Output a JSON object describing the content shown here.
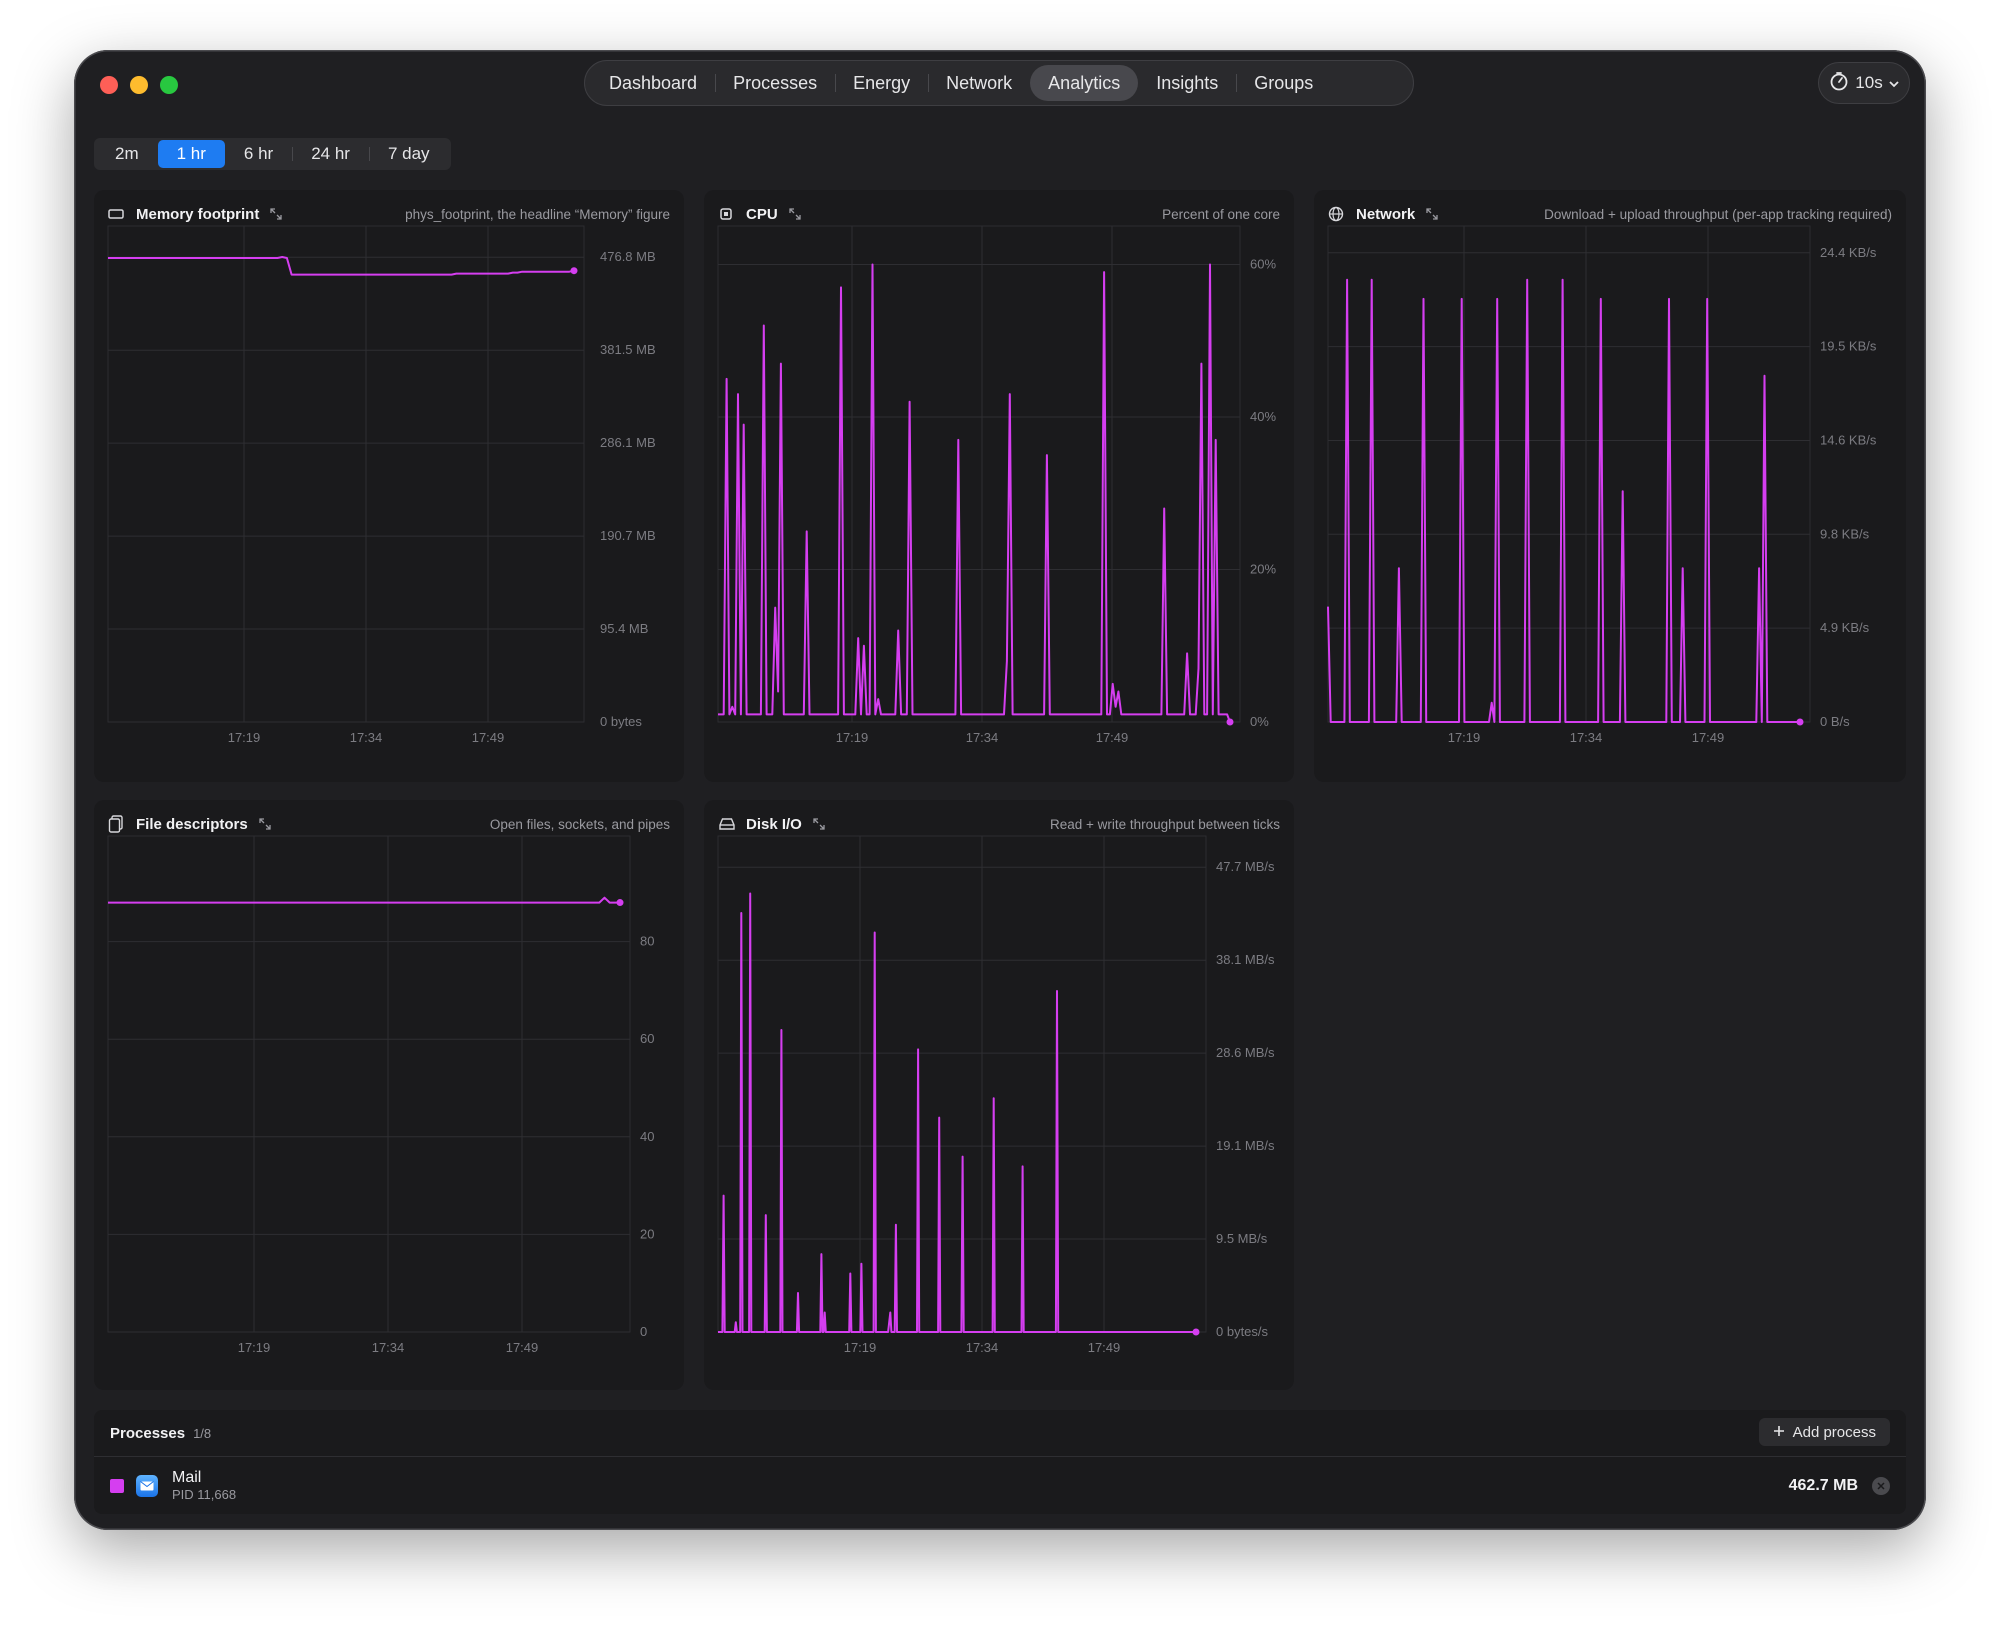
{
  "nav": {
    "tabs": [
      {
        "label": "Dashboard"
      },
      {
        "label": "Processes"
      },
      {
        "label": "Energy"
      },
      {
        "label": "Network"
      },
      {
        "label": "Analytics",
        "active": true
      },
      {
        "label": "Insights"
      },
      {
        "label": "Groups"
      }
    ],
    "interval": "10s"
  },
  "ranges": [
    {
      "label": "2m"
    },
    {
      "label": "1 hr",
      "active": true
    },
    {
      "label": "6 hr"
    },
    {
      "label": "24 hr"
    },
    {
      "label": "7 day"
    }
  ],
  "colors": {
    "series": "#d53ef0",
    "accent": "#1e7cf2"
  },
  "chart_data": [
    {
      "id": "memory",
      "type": "line",
      "title": "Memory footprint",
      "subtitle": "phys_footprint, the headline “Memory” figure",
      "yticks": [
        "476.8 MB",
        "381.5 MB",
        "286.1 MB",
        "190.7 MB",
        "95.4 MB",
        "0 bytes"
      ],
      "xticks": [
        "17:19",
        "17:34",
        "17:49"
      ],
      "grid": true,
      "series": [
        {
          "values": [
            476,
            476,
            476,
            476,
            476,
            476,
            476,
            476,
            476,
            476,
            476,
            476,
            476,
            476,
            476,
            476,
            476,
            476,
            476,
            476,
            476,
            476,
            476,
            476,
            476,
            476,
            476,
            476,
            476,
            476,
            476,
            476,
            476,
            476,
            476,
            476,
            476,
            477,
            476,
            459,
            459,
            459,
            459,
            459,
            459,
            459,
            459,
            459,
            459,
            459,
            459,
            459,
            459,
            459,
            459,
            459,
            459,
            459,
            459,
            459,
            459,
            459,
            459,
            459,
            459,
            459,
            459,
            459,
            459,
            459,
            459,
            459,
            459,
            459,
            460,
            460,
            460,
            460,
            460,
            460,
            460,
            460,
            460,
            460,
            460,
            460,
            461,
            461,
            462,
            462,
            462,
            462,
            462,
            462,
            462,
            462,
            462,
            462,
            462,
            463
          ]
        }
      ]
    },
    {
      "id": "cpu",
      "type": "line",
      "title": "CPU",
      "subtitle": "Percent of one core",
      "yticks": [
        "60%",
        "40%",
        "20%",
        "0%"
      ],
      "xticks": [
        "17:19",
        "17:34",
        "17:49"
      ],
      "grid": true,
      "series": [
        {
          "values": [
            1,
            1,
            1,
            45,
            1,
            2,
            1,
            43,
            1,
            39,
            1,
            1,
            1,
            1,
            1,
            1,
            52,
            1,
            1,
            1,
            15,
            4,
            47,
            1,
            1,
            1,
            1,
            1,
            1,
            1,
            1,
            25,
            1,
            1,
            1,
            1,
            1,
            1,
            1,
            1,
            1,
            1,
            1,
            57,
            1,
            1,
            1,
            1,
            1,
            11,
            1,
            10,
            1,
            1,
            60,
            1,
            3,
            1,
            1,
            1,
            1,
            1,
            1,
            12,
            1,
            1,
            1,
            42,
            1,
            1,
            1,
            1,
            1,
            1,
            1,
            1,
            1,
            1,
            1,
            1,
            1,
            1,
            1,
            1,
            37,
            1,
            1,
            1,
            1,
            1,
            1,
            1,
            1,
            1,
            1,
            1,
            1,
            1,
            1,
            1,
            1,
            8,
            43,
            1,
            1,
            1,
            1,
            1,
            1,
            1,
            1,
            1,
            1,
            1,
            1,
            35,
            1,
            1,
            1,
            1,
            1,
            1,
            1,
            1,
            1,
            1,
            1,
            1,
            1,
            1,
            1,
            1,
            1,
            1,
            1,
            59,
            1,
            1,
            5,
            2,
            4,
            1,
            1,
            1,
            1,
            1,
            1,
            1,
            1,
            1,
            1,
            1,
            1,
            1,
            1,
            1,
            28,
            1,
            1,
            1,
            1,
            1,
            1,
            1,
            9,
            1,
            1,
            1,
            7,
            47,
            1,
            1,
            60,
            1,
            37,
            1,
            1,
            1,
            1,
            0
          ]
        }
      ]
    },
    {
      "id": "network",
      "type": "line",
      "title": "Network",
      "subtitle": "Download + upload throughput (per-app tracking required)",
      "yticks": [
        "24.4 KB/s",
        "19.5 KB/s",
        "14.6 KB/s",
        "9.8 KB/s",
        "4.9 KB/s",
        "0 B/s"
      ],
      "xticks": [
        "17:19",
        "17:34",
        "17:49"
      ],
      "grid": true,
      "series": [
        {
          "values": [
            6,
            0,
            0,
            0,
            0,
            0,
            0,
            23,
            0,
            0,
            0,
            0,
            0,
            0,
            0,
            0,
            23,
            0,
            0,
            0,
            0,
            0,
            0,
            0,
            0,
            0,
            8,
            0,
            0,
            0,
            0,
            0,
            0,
            0,
            0,
            22,
            0,
            0,
            0,
            0,
            0,
            0,
            0,
            0,
            0,
            0,
            0,
            0,
            0,
            22,
            0,
            0,
            0,
            0,
            0,
            0,
            0,
            0,
            0,
            0,
            1,
            0,
            22,
            0,
            0,
            0,
            0,
            0,
            0,
            0,
            0,
            0,
            0,
            23,
            0,
            0,
            0,
            0,
            0,
            0,
            0,
            0,
            0,
            0,
            0,
            0,
            23,
            0,
            0,
            0,
            0,
            0,
            0,
            0,
            0,
            0,
            0,
            0,
            0,
            0,
            22,
            0,
            0,
            0,
            0,
            0,
            0,
            0,
            12,
            0,
            0,
            0,
            0,
            0,
            0,
            0,
            0,
            0,
            0,
            0,
            0,
            0,
            0,
            0,
            0,
            22,
            0,
            0,
            0,
            0,
            8,
            0,
            0,
            0,
            0,
            0,
            0,
            0,
            0,
            22,
            0,
            0,
            0,
            0,
            0,
            0,
            0,
            0,
            0,
            0,
            0,
            0,
            0,
            0,
            0,
            0,
            0,
            0,
            8,
            0,
            18,
            0,
            0,
            0,
            0,
            0,
            0,
            0,
            0,
            0,
            0,
            0,
            0,
            0
          ]
        }
      ]
    },
    {
      "id": "fd",
      "type": "line",
      "title": "File descriptors",
      "subtitle": "Open files, sockets, and pipes",
      "yticks": [
        "80",
        "60",
        "40",
        "20",
        "0"
      ],
      "xticks": [
        "17:19",
        "17:34",
        "17:49"
      ],
      "grid": true,
      "series": [
        {
          "values": [
            88,
            88,
            88,
            88,
            88,
            88,
            88,
            88,
            88,
            88,
            88,
            88,
            88,
            88,
            88,
            88,
            88,
            88,
            88,
            88,
            88,
            88,
            88,
            88,
            88,
            88,
            88,
            88,
            88,
            88,
            88,
            88,
            88,
            88,
            88,
            88,
            88,
            88,
            88,
            88,
            88,
            88,
            88,
            88,
            88,
            88,
            88,
            88,
            88,
            88,
            88,
            88,
            88,
            88,
            88,
            88,
            88,
            88,
            88,
            88,
            88,
            88,
            88,
            88,
            88,
            88,
            88,
            88,
            88,
            88,
            88,
            88,
            88,
            88,
            88,
            88,
            88,
            88,
            88,
            88,
            88,
            88,
            88,
            88,
            88,
            88,
            88,
            88,
            88,
            88,
            88,
            88,
            88,
            88,
            88,
            88,
            89,
            88,
            88,
            88
          ]
        }
      ]
    },
    {
      "id": "disk",
      "type": "line",
      "title": "Disk I/O",
      "subtitle": "Read + write throughput between ticks",
      "yticks": [
        "47.7 MB/s",
        "38.1 MB/s",
        "28.6 MB/s",
        "19.1 MB/s",
        "9.5 MB/s",
        "0 bytes/s"
      ],
      "xticks": [
        "17:19",
        "17:34",
        "17:49"
      ],
      "grid": true,
      "series": [
        {
          "values": [
            0,
            0,
            0,
            0,
            0,
            14,
            0,
            0,
            0,
            0,
            0,
            0,
            0,
            0,
            0,
            0,
            1,
            0,
            0,
            0,
            0,
            43,
            0,
            0,
            0,
            0,
            0,
            0,
            0,
            45,
            0,
            0,
            0,
            0,
            0,
            0,
            0,
            0,
            0,
            0,
            0,
            0,
            0,
            12,
            0,
            0,
            0,
            0,
            0,
            0,
            0,
            0,
            0,
            0,
            0,
            0,
            0,
            31,
            0,
            0,
            0,
            0,
            0,
            0,
            0,
            0,
            0,
            0,
            0,
            0,
            0,
            0,
            4,
            0,
            0,
            0,
            0,
            0,
            0,
            0,
            0,
            0,
            0,
            0,
            0,
            0,
            0,
            0,
            0,
            0,
            0,
            0,
            0,
            8,
            0,
            0,
            2,
            0,
            0,
            0,
            0,
            0,
            0,
            0,
            0,
            0,
            0,
            0,
            0,
            0,
            0,
            0,
            0,
            0,
            0,
            0,
            0,
            0,
            0,
            6,
            0,
            0,
            0,
            0,
            0,
            0,
            0,
            0,
            0,
            7,
            0,
            0,
            0,
            0,
            0,
            0,
            0,
            0,
            0,
            0,
            0,
            41,
            0,
            0,
            0,
            0,
            0,
            0,
            0,
            0,
            0,
            0,
            0,
            0,
            1,
            2,
            0,
            0,
            0,
            0,
            11,
            0,
            0,
            0,
            0,
            0,
            0,
            0,
            0,
            0,
            0,
            0,
            0,
            0,
            0,
            0,
            0,
            0,
            0,
            0,
            29,
            0,
            0,
            0,
            0,
            0,
            0,
            0,
            0,
            0,
            0,
            0,
            0,
            0,
            0,
            0,
            0,
            0,
            0,
            22,
            0,
            0,
            0,
            0,
            0,
            0,
            0,
            0,
            0,
            0,
            0,
            0,
            0,
            0,
            0,
            0,
            0,
            0,
            0,
            0,
            18,
            0,
            0,
            0,
            0,
            0,
            0,
            0,
            0,
            0,
            0,
            0,
            0,
            0,
            0,
            0,
            0,
            0,
            0,
            0,
            0,
            0,
            0,
            0,
            0,
            0,
            0,
            0,
            24,
            0,
            0,
            0,
            0,
            0,
            0,
            0,
            0,
            0,
            0,
            0,
            0,
            0,
            0,
            0,
            0,
            0,
            0,
            0,
            0,
            0,
            0,
            0,
            0,
            0,
            17,
            0,
            0,
            0,
            0,
            0,
            0,
            0,
            0,
            0,
            0,
            0,
            0,
            0,
            0,
            0,
            0,
            0,
            0,
            0,
            0,
            0,
            0,
            0,
            0,
            0,
            0,
            0,
            0,
            0,
            0,
            35,
            0,
            0,
            0,
            0,
            0,
            0,
            0,
            0,
            0,
            0,
            0,
            0,
            0,
            0,
            0,
            0,
            0,
            0,
            0,
            0,
            0,
            0,
            0,
            0,
            0,
            0,
            0,
            0,
            0,
            0,
            0,
            0,
            0,
            0,
            0,
            0,
            0,
            0,
            0,
            0,
            0,
            0,
            0,
            0,
            0,
            0,
            0,
            0,
            0,
            0,
            0,
            0,
            0,
            0,
            0,
            0,
            0,
            0,
            0,
            0,
            0,
            0,
            0,
            0,
            0,
            0,
            0,
            0,
            0,
            0,
            0,
            0,
            0,
            0,
            0,
            0,
            0,
            0,
            0,
            0,
            0,
            0,
            0,
            0,
            0,
            0,
            0,
            0,
            0,
            0,
            0,
            0,
            0,
            0,
            0,
            0,
            0,
            0,
            0,
            0,
            0,
            0,
            0,
            0,
            0,
            0,
            0,
            0,
            0,
            0,
            0,
            0,
            0,
            0,
            0,
            0,
            0,
            0,
            0,
            0,
            0,
            0,
            0,
            0,
            0
          ]
        }
      ]
    }
  ],
  "processes": {
    "title": "Processes",
    "count": "1/8",
    "add_label": "Add process",
    "rows": [
      {
        "name": "Mail",
        "pid": "PID 11,668",
        "value": "462.7 MB"
      }
    ]
  }
}
